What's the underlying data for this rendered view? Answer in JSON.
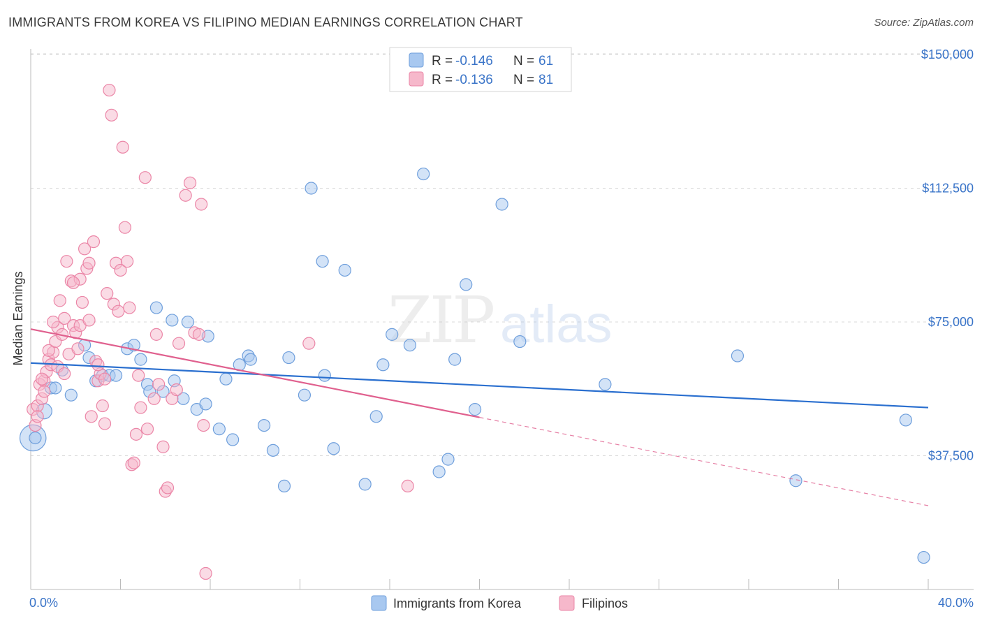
{
  "header": {
    "title": "IMMIGRANTS FROM KOREA VS FILIPINO MEDIAN EARNINGS CORRELATION CHART",
    "source": "Source: ZipAtlas.com"
  },
  "watermark": {
    "zip": "ZIP",
    "atlas": "atlas"
  },
  "colors": {
    "korea_fill": "#a8c8f0",
    "korea_stroke": "#6f9fdc",
    "korea_line": "#2a6fcf",
    "filipino_fill": "#f6b8cb",
    "filipino_stroke": "#eb86a7",
    "filipino_line": "#e0608e",
    "tick_label": "#3a74c8",
    "grid": "#d9d9d9"
  },
  "legend": {
    "items": [
      {
        "r_label": "R = ",
        "r_value": "-0.146",
        "n_label": "N = ",
        "n_value": "61"
      },
      {
        "r_label": "R = ",
        "r_value": "-0.136",
        "n_label": "N = ",
        "n_value": "81"
      }
    ]
  },
  "bottom_legend": [
    "Immigrants from Korea",
    "Filipinos"
  ],
  "chart_data": {
    "type": "scatter",
    "title": "IMMIGRANTS FROM KOREA VS FILIPINO MEDIAN EARNINGS CORRELATION CHART",
    "xlabel": "",
    "ylabel": "Median Earnings",
    "xlim": [
      0,
      40
    ],
    "ylim": [
      0,
      153000
    ],
    "x_tick_labels": [
      "0.0%",
      "40.0%"
    ],
    "y_ticks": [
      37500,
      75000,
      112500,
      150000
    ],
    "y_tick_labels": [
      "$37,500",
      "$75,000",
      "$112,500",
      "$150,000"
    ],
    "grid": true,
    "series": [
      {
        "name": "Immigrants from Korea",
        "trend": {
          "x": [
            0,
            40
          ],
          "y": [
            63500,
            51000
          ],
          "dashed_from": null
        },
        "points": [
          [
            0.1,
            42500,
            2.2
          ],
          [
            0.6,
            50000,
            1.3
          ],
          [
            0.9,
            56500,
            1
          ],
          [
            1.1,
            56500,
            1
          ],
          [
            1.4,
            61500,
            1
          ],
          [
            1.8,
            54500,
            1
          ],
          [
            2.4,
            68500,
            1
          ],
          [
            2.9,
            58500,
            1
          ],
          [
            3.2,
            60000,
            1
          ],
          [
            3.5,
            60000,
            1
          ],
          [
            3.8,
            60000,
            1
          ],
          [
            4.3,
            67500,
            1
          ],
          [
            4.6,
            68500,
            1
          ],
          [
            4.9,
            64500,
            1
          ],
          [
            5.2,
            57500,
            1
          ],
          [
            5.3,
            55500,
            1
          ],
          [
            5.6,
            79000,
            1
          ],
          [
            5.9,
            55500,
            1
          ],
          [
            6.3,
            75500,
            1
          ],
          [
            6.4,
            58500,
            1
          ],
          [
            6.8,
            53500,
            1
          ],
          [
            7.0,
            75000,
            1
          ],
          [
            7.4,
            50500,
            1
          ],
          [
            7.8,
            52000,
            1
          ],
          [
            7.9,
            71000,
            1
          ],
          [
            8.4,
            45000,
            1
          ],
          [
            8.7,
            59000,
            1
          ],
          [
            9.0,
            42000,
            1
          ],
          [
            9.3,
            63000,
            1
          ],
          [
            9.7,
            65500,
            1
          ],
          [
            9.8,
            64500,
            1
          ],
          [
            10.4,
            46000,
            1
          ],
          [
            10.8,
            39000,
            1
          ],
          [
            11.3,
            29000,
            1
          ],
          [
            11.5,
            65000,
            1
          ],
          [
            12.2,
            54500,
            1
          ],
          [
            12.5,
            112500,
            1
          ],
          [
            13.0,
            92000,
            1
          ],
          [
            13.1,
            60000,
            1
          ],
          [
            13.5,
            39500,
            1
          ],
          [
            14.0,
            89500,
            1
          ],
          [
            14.9,
            29500,
            1
          ],
          [
            15.4,
            48500,
            1
          ],
          [
            15.7,
            63000,
            1
          ],
          [
            16.1,
            71500,
            1
          ],
          [
            16.9,
            68500,
            1
          ],
          [
            17.5,
            116500,
            1
          ],
          [
            18.2,
            33000,
            1
          ],
          [
            18.6,
            36500,
            1
          ],
          [
            18.9,
            64500,
            1
          ],
          [
            19.4,
            85500,
            1
          ],
          [
            19.8,
            50500,
            1
          ],
          [
            21.0,
            108000,
            1
          ],
          [
            21.8,
            69500,
            1
          ],
          [
            25.6,
            57500,
            1
          ],
          [
            31.5,
            65500,
            1
          ],
          [
            34.1,
            30500,
            1
          ],
          [
            39.0,
            47500,
            1
          ],
          [
            39.8,
            9000,
            1
          ],
          [
            0.2,
            42500,
            1
          ],
          [
            2.6,
            65000,
            1
          ]
        ]
      },
      {
        "name": "Filipinos",
        "trend": {
          "x": [
            0,
            40
          ],
          "y": [
            73000,
            23500
          ],
          "dashed_from": 20
        },
        "points": [
          [
            0.1,
            50500,
            1
          ],
          [
            0.2,
            46000,
            1
          ],
          [
            0.3,
            51500,
            1
          ],
          [
            0.4,
            57500,
            1
          ],
          [
            0.5,
            53500,
            1
          ],
          [
            0.6,
            58500,
            1
          ],
          [
            0.7,
            61000,
            1
          ],
          [
            0.8,
            64500,
            1
          ],
          [
            0.9,
            63000,
            1
          ],
          [
            1.0,
            66500,
            1
          ],
          [
            1.1,
            69500,
            1
          ],
          [
            1.2,
            73500,
            1
          ],
          [
            1.3,
            81000,
            1
          ],
          [
            1.4,
            71500,
            1
          ],
          [
            1.5,
            76000,
            1
          ],
          [
            1.6,
            92000,
            1
          ],
          [
            1.7,
            66000,
            1
          ],
          [
            1.8,
            86500,
            1
          ],
          [
            1.9,
            74000,
            1
          ],
          [
            2.0,
            72000,
            1
          ],
          [
            2.1,
            67500,
            1
          ],
          [
            2.2,
            87000,
            1
          ],
          [
            2.3,
            80500,
            1
          ],
          [
            2.4,
            95500,
            1
          ],
          [
            2.5,
            90000,
            1
          ],
          [
            2.6,
            91500,
            1
          ],
          [
            2.7,
            48500,
            1
          ],
          [
            2.8,
            97500,
            1
          ],
          [
            2.9,
            64000,
            1
          ],
          [
            3.0,
            58500,
            1
          ],
          [
            3.1,
            60500,
            1
          ],
          [
            3.2,
            51500,
            1
          ],
          [
            3.3,
            46500,
            1
          ],
          [
            3.4,
            83000,
            1
          ],
          [
            3.5,
            140000,
            1
          ],
          [
            3.6,
            133000,
            1
          ],
          [
            3.7,
            80000,
            1
          ],
          [
            3.8,
            91500,
            1
          ],
          [
            3.9,
            78000,
            1
          ],
          [
            4.0,
            89500,
            1
          ],
          [
            4.1,
            124000,
            1
          ],
          [
            4.2,
            101500,
            1
          ],
          [
            4.3,
            92000,
            1
          ],
          [
            4.4,
            79000,
            1
          ],
          [
            4.5,
            35000,
            1
          ],
          [
            4.6,
            35500,
            1
          ],
          [
            4.7,
            43500,
            1
          ],
          [
            4.8,
            60000,
            1
          ],
          [
            4.9,
            51000,
            1
          ],
          [
            5.1,
            115500,
            1
          ],
          [
            5.2,
            45000,
            1
          ],
          [
            5.5,
            53500,
            1
          ],
          [
            5.6,
            71500,
            1
          ],
          [
            5.7,
            57500,
            1
          ],
          [
            5.9,
            40000,
            1
          ],
          [
            6.0,
            27500,
            1
          ],
          [
            6.1,
            28500,
            1
          ],
          [
            6.3,
            53500,
            1
          ],
          [
            6.5,
            56000,
            1
          ],
          [
            6.6,
            69000,
            1
          ],
          [
            6.9,
            110500,
            1
          ],
          [
            7.1,
            114000,
            1
          ],
          [
            7.3,
            72000,
            1
          ],
          [
            7.5,
            71500,
            1
          ],
          [
            7.6,
            108000,
            1
          ],
          [
            7.7,
            46000,
            1
          ],
          [
            7.8,
            4500,
            1
          ],
          [
            12.4,
            69000,
            1
          ],
          [
            16.8,
            29000,
            1
          ],
          [
            0.5,
            59000,
            1
          ],
          [
            0.8,
            67000,
            1
          ],
          [
            1.0,
            75000,
            1
          ],
          [
            1.2,
            62500,
            1
          ],
          [
            1.5,
            60500,
            1
          ],
          [
            1.9,
            86000,
            1
          ],
          [
            2.2,
            74000,
            1
          ],
          [
            2.6,
            75500,
            1
          ],
          [
            3.0,
            63000,
            1
          ],
          [
            3.3,
            59000,
            1
          ],
          [
            0.3,
            48500,
            1
          ],
          [
            0.6,
            55500,
            1
          ]
        ]
      }
    ]
  }
}
